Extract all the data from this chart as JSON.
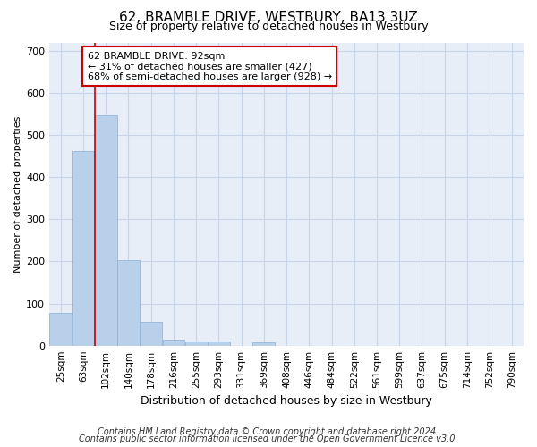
{
  "title": "62, BRAMBLE DRIVE, WESTBURY, BA13 3UZ",
  "subtitle": "Size of property relative to detached houses in Westbury",
  "xlabel": "Distribution of detached houses by size in Westbury",
  "ylabel": "Number of detached properties",
  "bar_categories": [
    "25sqm",
    "63sqm",
    "102sqm",
    "140sqm",
    "178sqm",
    "216sqm",
    "255sqm",
    "293sqm",
    "331sqm",
    "369sqm",
    "408sqm",
    "446sqm",
    "484sqm",
    "522sqm",
    "561sqm",
    "599sqm",
    "637sqm",
    "675sqm",
    "714sqm",
    "752sqm",
    "790sqm"
  ],
  "bar_values": [
    78,
    462,
    548,
    204,
    57,
    14,
    9,
    9,
    0,
    8,
    0,
    0,
    0,
    0,
    0,
    0,
    0,
    0,
    0,
    0,
    0
  ],
  "bar_color": "#b8d0ea",
  "bar_edge_color": "#8ab0d4",
  "grid_color": "#c8d4e8",
  "bg_color": "#e8eef8",
  "vline_x": 1.5,
  "vline_color": "#cc0000",
  "annotation_line1": "62 BRAMBLE DRIVE: 92sqm",
  "annotation_line2": "← 31% of detached houses are smaller (427)",
  "annotation_line3": "68% of semi-detached houses are larger (928) →",
  "annotation_box_color": "white",
  "annotation_box_edge": "#cc0000",
  "footer_line1": "Contains HM Land Registry data © Crown copyright and database right 2024.",
  "footer_line2": "Contains public sector information licensed under the Open Government Licence v3.0.",
  "ylim": [
    0,
    720
  ],
  "yticks": [
    0,
    100,
    200,
    300,
    400,
    500,
    600,
    700
  ],
  "title_fontsize": 11,
  "subtitle_fontsize": 9,
  "ylabel_fontsize": 8,
  "xlabel_fontsize": 9,
  "tick_fontsize": 7.5,
  "annotation_fontsize": 8,
  "footer_fontsize": 7
}
